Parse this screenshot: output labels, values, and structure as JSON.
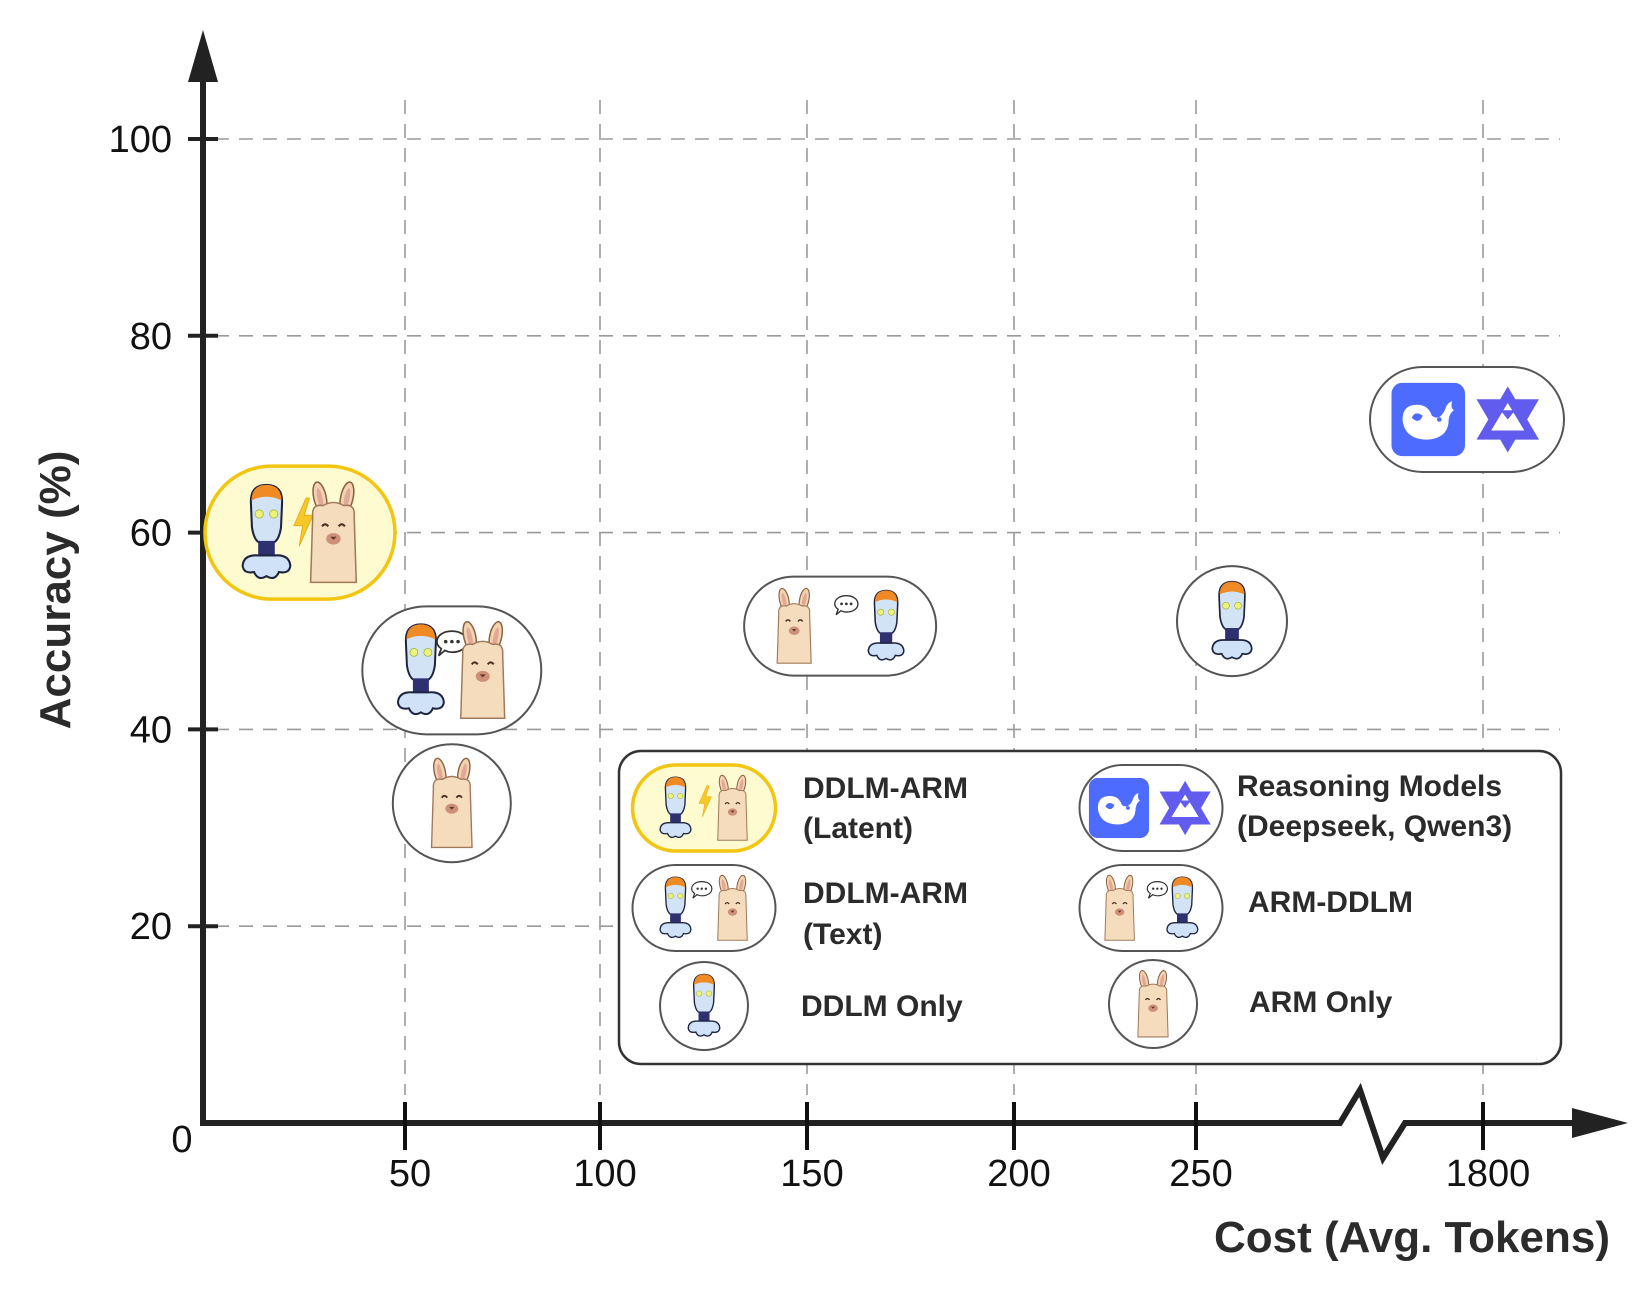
{
  "chart_data": {
    "type": "scatter",
    "title": "",
    "xlabel": "Cost (Avg. Tokens)",
    "ylabel": "Accuracy (%)",
    "x_ticks": [
      "0",
      "50",
      "100",
      "150",
      "200",
      "250",
      "1800"
    ],
    "x_tick_values": [
      0,
      50,
      100,
      150,
      200,
      250,
      1800
    ],
    "x_axis_break": "between 250 and 1800",
    "y_ticks": [
      "20",
      "40",
      "60",
      "80",
      "100"
    ],
    "y_tick_values": [
      20,
      40,
      60,
      80,
      100
    ],
    "xlim": [
      0,
      1850
    ],
    "ylim": [
      0,
      100
    ],
    "grid": true,
    "points": [
      {
        "name": "DDLM-ARM (Latent)",
        "kind": "latent",
        "x": 24,
        "y": 60,
        "highlight": true
      },
      {
        "name": "DDLM-ARM (Text)",
        "kind": "text",
        "x": 62,
        "y": 46
      },
      {
        "name": "ARM Only",
        "kind": "arm",
        "x": 62,
        "y": 32.5
      },
      {
        "name": "ARM-DDLM",
        "kind": "armddlm",
        "x": 158,
        "y": 50.5
      },
      {
        "name": "DDLM Only",
        "kind": "ddlm",
        "x": 260,
        "y": 51
      },
      {
        "name": "Reasoning Models (Deepseek, Qwen3)",
        "kind": "reasoning",
        "x": 1780,
        "y": 71.5
      }
    ],
    "legend": {
      "placement": "bottom-right",
      "items": [
        {
          "kind": "latent",
          "lines": [
            "DDLM-ARM",
            "(Latent)"
          ]
        },
        {
          "kind": "reasoning",
          "lines": [
            "Reasoning Models",
            "(Deepseek, Qwen3)"
          ]
        },
        {
          "kind": "text",
          "lines": [
            "DDLM-ARM",
            "(Text)"
          ]
        },
        {
          "kind": "armddlm",
          "lines": [
            "ARM-DDLM"
          ]
        },
        {
          "kind": "ddlm",
          "lines": [
            "DDLM Only"
          ]
        },
        {
          "kind": "arm",
          "lines": [
            "ARM Only"
          ]
        }
      ]
    }
  },
  "colors": {
    "highlight_fill": "#fffbd0",
    "highlight_stroke": "#f2c511",
    "deepseek": "#4d6bfe",
    "qwen": "#615ced",
    "robot_cap": "#f08a24",
    "llama": "#f5dcbc"
  },
  "icons": [
    "robot-icon",
    "llama-icon",
    "lightning-icon",
    "speech-bubble-icon",
    "deepseek-logo-icon",
    "qwen-logo-icon"
  ]
}
